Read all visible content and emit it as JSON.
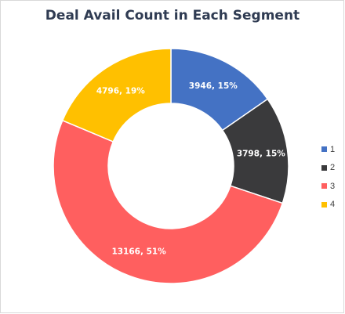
{
  "chart_data": {
    "type": "pie",
    "title": "Deal Avail Count in Each Segment",
    "donut": true,
    "categories": [
      "1",
      "2",
      "3",
      "4"
    ],
    "values": [
      3946,
      3798,
      13166,
      4796
    ],
    "data_labels": [
      "3946, 15%",
      "3798, 15%",
      "13166, 51%",
      "4796, 19%"
    ],
    "colors": [
      "#4472c4",
      "#3a3a3c",
      "#ff5f5f",
      "#ffc000"
    ],
    "legend": {
      "position": "right",
      "entries": [
        "1",
        "2",
        "3",
        "4"
      ]
    }
  }
}
